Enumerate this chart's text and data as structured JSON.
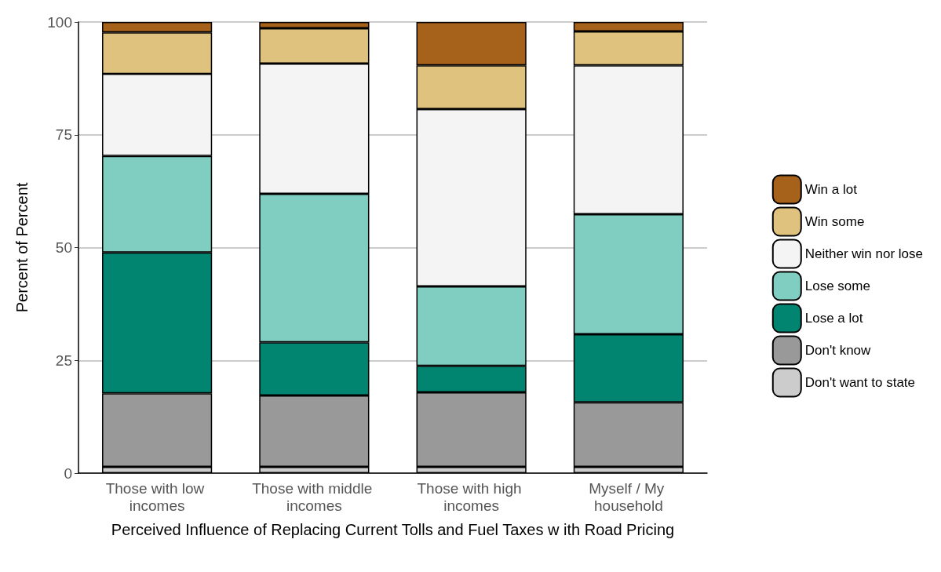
{
  "chart_data": {
    "type": "bar",
    "stacked": true,
    "xlabel": "Perceived Influence of Replacing Current Tolls and Fuel Taxes w ith Road Pricing",
    "ylabel": "Percent of Percent",
    "categories": [
      "Those with low incomes",
      "Those with middle incomes",
      "Those with high incomes",
      "Myself / My household"
    ],
    "series": [
      {
        "name": "Don't want to state",
        "color": "#cccccc",
        "values": [
          1.4,
          1.4,
          1.4,
          1.4
        ]
      },
      {
        "name": "Don't know",
        "color": "#999999",
        "values": [
          16.3,
          15.8,
          16.5,
          14.3
        ]
      },
      {
        "name": "Lose a lot",
        "color": "#018571",
        "values": [
          31.2,
          11.8,
          5.9,
          15.1
        ]
      },
      {
        "name": "Lose some",
        "color": "#80cdc1",
        "values": [
          21.4,
          32.9,
          17.6,
          26.6
        ]
      },
      {
        "name": "Neither win nor lose",
        "color": "#f4f4f4",
        "values": [
          18.2,
          28.9,
          39.3,
          33.0
        ]
      },
      {
        "name": "Win some",
        "color": "#dfc27d",
        "values": [
          9.2,
          7.8,
          9.7,
          7.5
        ]
      },
      {
        "name": "Win a lot",
        "color": "#a6611a",
        "values": [
          2.3,
          1.4,
          9.6,
          2.1
        ]
      }
    ],
    "ylim": [
      0,
      100
    ],
    "yticks": [
      0,
      25,
      50,
      75,
      100
    ],
    "grid": "y",
    "legend": "right"
  }
}
